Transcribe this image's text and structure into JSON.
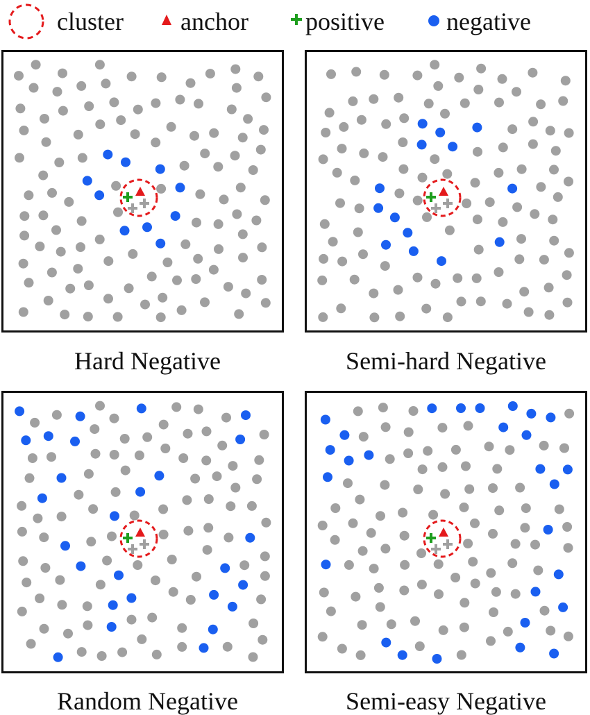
{
  "legend": {
    "cluster": "cluster",
    "anchor": "anchor",
    "positive": "positive",
    "negative": "negative"
  },
  "colors": {
    "gray": "#a0a0a0",
    "blue": "#1a5ff0",
    "red": "#e41a1c",
    "green": "#1e9e1e",
    "frame": "#111111"
  },
  "panels": [
    {
      "caption": "Hard Negative",
      "negative_pattern": "ring-near-anchor"
    },
    {
      "caption": "Semi-hard Negative",
      "negative_pattern": "ring-at-medium-distance"
    },
    {
      "caption": "Random Negative",
      "negative_pattern": "scattered-random"
    },
    {
      "caption": "Semi-easy Negative",
      "negative_pattern": "far-from-anchor"
    }
  ]
}
